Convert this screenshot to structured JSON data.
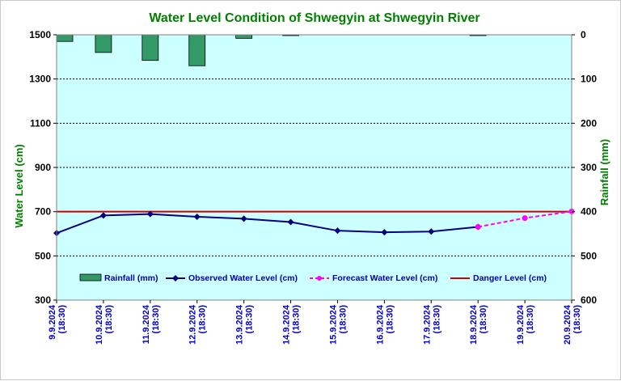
{
  "chart_data": {
    "type": "line",
    "title": "Water Level Condition of Shwegyin at Shwegyin River",
    "ylabel": "Water Level (cm)",
    "y2label": "Rainfall (mm)",
    "ylim": [
      300,
      1500
    ],
    "yticks": [
      300,
      500,
      700,
      900,
      1100,
      1300,
      1500
    ],
    "y2lim": [
      0,
      600
    ],
    "y2ticks": [
      0,
      100,
      200,
      300,
      400,
      500,
      600
    ],
    "y2_inverted": true,
    "categories": [
      "9.9.2024 (18:30)",
      "10.9.2024 (18:30)",
      "11.9.2024 (18:30)",
      "12.9.2024 (18:30)",
      "13.9.2024 (18:30)",
      "14.9.2024 (18:30)",
      "15.9.2024 (18:30)",
      "16.9.2024 (18:30)",
      "17.9.2024 (18:30)",
      "18.9.2024 (18:30)",
      "19.9.2024 (18:30)",
      "20.9.2024 (18:30)"
    ],
    "xtick_lines": [
      [
        "9.9.2024",
        "(18:30)"
      ],
      [
        "10.9.2024",
        "(18:30)"
      ],
      [
        "11.9.2024",
        "(18:30)"
      ],
      [
        "12.9.2024",
        "(18:30)"
      ],
      [
        "13.9.2024",
        "(18:30)"
      ],
      [
        "14.9.2024",
        "(18:30)"
      ],
      [
        "15.9.2024",
        "(18:30)"
      ],
      [
        "16.9.2024",
        "(18:30)"
      ],
      [
        "17.9.2024",
        "(18:30)"
      ],
      [
        "18.9.2024",
        "(18:30)"
      ],
      [
        "19.9.2024",
        "(18:30)"
      ],
      [
        "20.9.2024",
        "(18:30)"
      ]
    ],
    "series": [
      {
        "name": "Rainfall (mm)",
        "kind": "bar",
        "axis": "right",
        "color": "#339966",
        "values": [
          15,
          40,
          58,
          70,
          8,
          1,
          0,
          0,
          0,
          1,
          null,
          null
        ]
      },
      {
        "name": "Observed Water Level (cm)",
        "kind": "line",
        "axis": "left",
        "color": "#000080",
        "values": [
          603,
          683,
          689,
          677,
          668,
          653,
          614,
          607,
          610,
          631,
          null,
          null
        ]
      },
      {
        "name": "Forecast Water Level (cm)",
        "kind": "dashed-line",
        "axis": "left",
        "color": "#ff00ff",
        "values": [
          null,
          null,
          null,
          null,
          null,
          null,
          null,
          null,
          null,
          631,
          671,
          701
        ]
      },
      {
        "name": "Danger Level (cm)",
        "kind": "hline",
        "axis": "left",
        "color": "#cc0000",
        "value": 700
      }
    ],
    "grid": true,
    "legend_position": "bottom-inside",
    "plot_background": "#ccffff"
  }
}
